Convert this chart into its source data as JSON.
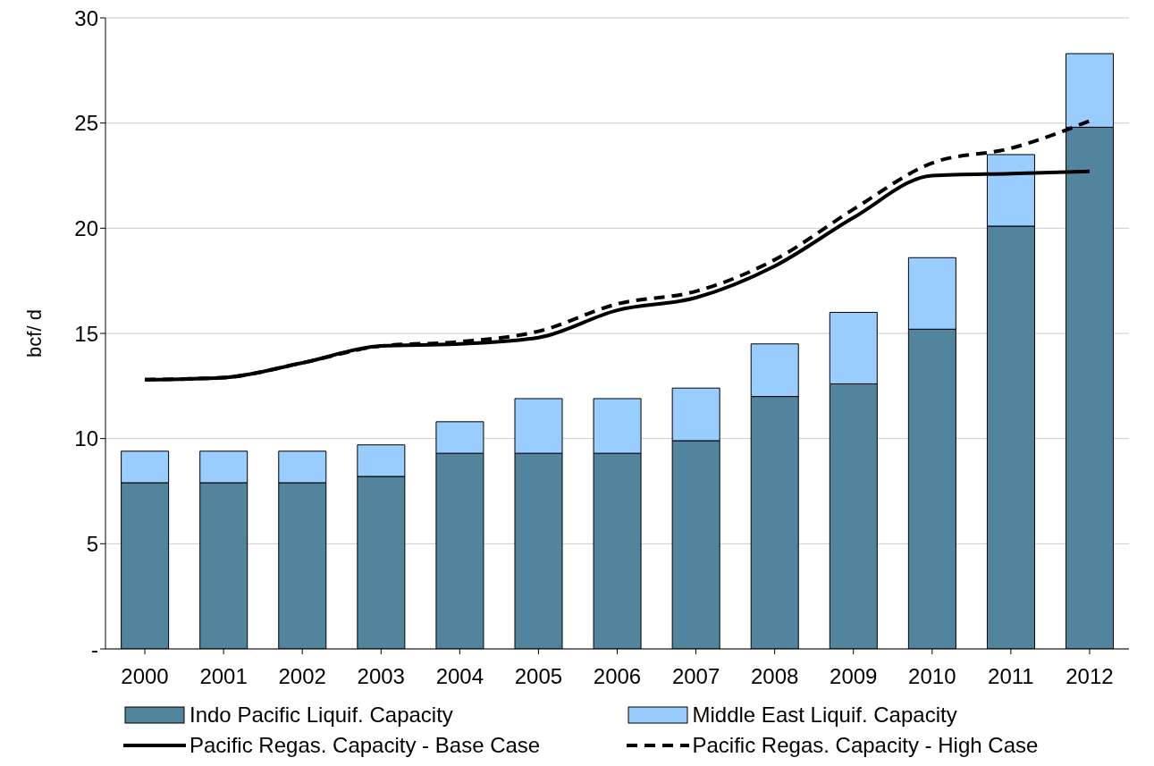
{
  "chart_data": {
    "type": "bar",
    "ylabel": "bcf/ d",
    "categories": [
      "2000",
      "2001",
      "2002",
      "2003",
      "2004",
      "2005",
      "2006",
      "2007",
      "2008",
      "2009",
      "2010",
      "2011",
      "2012"
    ],
    "stacked": true,
    "ylim": [
      0,
      30
    ],
    "yticks": [
      {
        "value": 0,
        "label": "-"
      },
      5,
      10,
      15,
      20,
      25,
      30
    ],
    "grid": "y",
    "legend": "bottom",
    "series": [
      {
        "name": "Indo Pacific Liquif. Capacity",
        "color": "#52849e",
        "values": [
          7.9,
          7.9,
          7.9,
          8.2,
          9.3,
          9.3,
          9.3,
          9.9,
          12.0,
          12.6,
          15.2,
          20.1,
          24.8
        ]
      },
      {
        "name": "Middle East Liquif. Capacity",
        "color": "#99ccff",
        "values": [
          1.5,
          1.5,
          1.5,
          1.5,
          1.5,
          2.6,
          2.6,
          2.5,
          2.5,
          3.4,
          3.4,
          3.4,
          3.5
        ]
      },
      {
        "name": "Pacific Regas. Capacity - Base Case",
        "type": "line",
        "color": "#000000",
        "line_style": "solid",
        "values": [
          12.8,
          12.9,
          13.6,
          14.4,
          14.5,
          14.8,
          16.1,
          16.7,
          18.2,
          20.5,
          22.5,
          22.6,
          22.7
        ]
      },
      {
        "name": "Pacific Regas. Capacity - High Case",
        "type": "line",
        "color": "#000000",
        "line_style": "dashed",
        "values": [
          12.8,
          12.9,
          13.6,
          14.4,
          14.6,
          15.1,
          16.4,
          17.0,
          18.5,
          20.9,
          23.1,
          23.8,
          25.1
        ]
      }
    ]
  }
}
